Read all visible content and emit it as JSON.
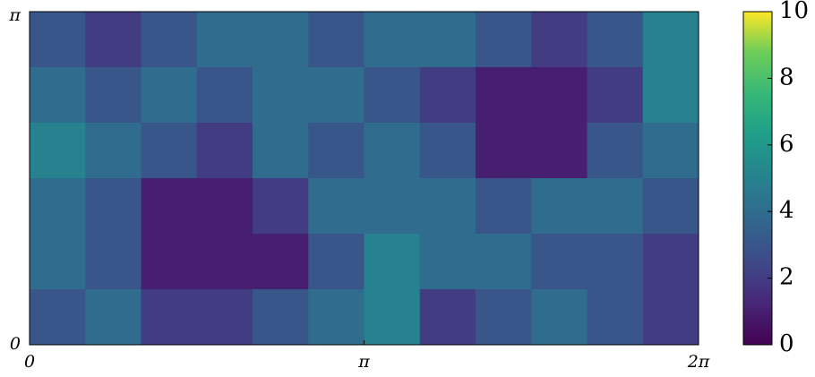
{
  "chart_data": {
    "type": "heatmap",
    "xlim": [
      0,
      6.283185
    ],
    "ylim": [
      0,
      3.141593
    ],
    "xticks": [
      0,
      {
        "value": 3.141593,
        "label": "π"
      },
      {
        "value": 6.283185,
        "label": "2π"
      }
    ],
    "yticks": [
      0,
      {
        "value": 3.141593,
        "label": "π"
      }
    ],
    "z": [
      [
        3,
        2,
        3,
        4,
        4,
        3,
        4,
        4,
        3,
        2,
        3,
        5
      ],
      [
        4,
        3,
        4,
        3,
        4,
        4,
        3,
        2,
        1,
        1,
        2,
        5
      ],
      [
        5,
        4,
        3,
        2,
        4,
        3,
        4,
        3,
        1,
        1,
        3,
        4
      ],
      [
        4,
        3,
        1,
        1,
        2,
        4,
        4,
        4,
        3,
        4,
        4,
        3
      ],
      [
        4,
        3,
        1,
        1,
        1,
        3,
        5,
        4,
        4,
        3,
        3,
        2
      ],
      [
        3,
        4,
        2,
        2,
        3,
        4,
        5,
        2,
        3,
        4,
        3,
        2
      ]
    ],
    "colorscale": "viridis",
    "zlim": [
      0,
      10
    ],
    "zticks": [
      0,
      2,
      4,
      6,
      8,
      10
    ]
  }
}
